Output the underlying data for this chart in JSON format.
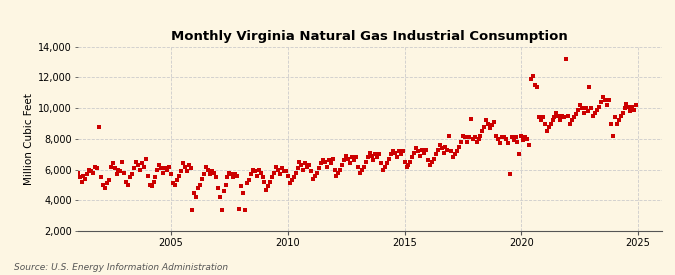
{
  "title": "Monthly Virginia Natural Gas Industrial Consumption",
  "ylabel": "Million Cubic Feet",
  "source": "Source: U.S. Energy Information Administration",
  "bg_color": "#fdf6e3",
  "dot_color": "#cc0000",
  "grid_color": "#cccccc",
  "ylim": [
    2000,
    14000
  ],
  "yticks": [
    2000,
    4000,
    6000,
    8000,
    10000,
    12000,
    14000
  ],
  "xlim": [
    2001.0,
    2026.0
  ],
  "xticks": [
    2005,
    2010,
    2015,
    2020,
    2025
  ],
  "start_year": 2001,
  "start_month": 1,
  "values": [
    5800,
    5500,
    5200,
    5600,
    5400,
    5700,
    6000,
    5900,
    5800,
    6200,
    6100,
    8800,
    5500,
    5000,
    4800,
    5100,
    5300,
    6200,
    6400,
    6100,
    5700,
    6000,
    5900,
    6500,
    5800,
    5200,
    5000,
    5500,
    5700,
    6100,
    6500,
    6300,
    6000,
    6400,
    6200,
    6700,
    5600,
    5000,
    4900,
    5200,
    5500,
    6000,
    6300,
    6100,
    5800,
    6100,
    6000,
    6200,
    5700,
    5100,
    5000,
    5300,
    5600,
    5900,
    6400,
    6200,
    5900,
    6300,
    6100,
    3400,
    4500,
    4200,
    4800,
    5000,
    5400,
    5700,
    6200,
    6000,
    5700,
    5900,
    5800,
    5500,
    4800,
    4200,
    3350,
    4600,
    5000,
    5500,
    5800,
    5700,
    5500,
    5700,
    5600,
    3450,
    4900,
    4500,
    3400,
    5100,
    5300,
    5700,
    6000,
    5900,
    5600,
    6000,
    5800,
    5500,
    5200,
    4700,
    4900,
    5200,
    5500,
    5800,
    6200,
    6000,
    5700,
    6100,
    5900,
    5900,
    5600,
    5100,
    5300,
    5500,
    5800,
    6100,
    6500,
    6300,
    6000,
    6400,
    6200,
    6300,
    5900,
    5400,
    5600,
    5800,
    6100,
    6400,
    6600,
    6500,
    6200,
    6600,
    6400,
    6700,
    6000,
    5600,
    5800,
    6000,
    6300,
    6600,
    6900,
    6700,
    6400,
    6800,
    6600,
    6800,
    6200,
    5800,
    6000,
    6200,
    6500,
    6800,
    7100,
    6900,
    6600,
    7000,
    6800,
    7000,
    6400,
    6000,
    6200,
    6400,
    6700,
    7000,
    7200,
    7100,
    6800,
    7200,
    7000,
    7200,
    6500,
    6200,
    6300,
    6500,
    6800,
    7100,
    7400,
    7200,
    6900,
    7300,
    7100,
    7300,
    6600,
    6300,
    6500,
    6700,
    7000,
    7300,
    7600,
    7400,
    7100,
    7500,
    7300,
    8200,
    7200,
    6800,
    7000,
    7200,
    7500,
    7800,
    8200,
    8100,
    7800,
    8100,
    9300,
    8000,
    8100,
    7800,
    8000,
    8200,
    8500,
    8800,
    9200,
    9000,
    8700,
    8900,
    9100,
    8200,
    8000,
    7700,
    8100,
    8100,
    8000,
    7700,
    5700,
    8100,
    7900,
    8100,
    7800,
    7000,
    8200,
    7900,
    8100,
    8000,
    7600,
    11900,
    12100,
    11500,
    11400,
    9400,
    9200,
    9400,
    9000,
    8500,
    8800,
    9000,
    9200,
    9400,
    9700,
    9500,
    9200,
    9500,
    9400,
    13200,
    9500,
    9000,
    9200,
    9400,
    9600,
    9900,
    10200,
    10000,
    9700,
    10000,
    9800,
    11400,
    10000,
    9500,
    9700,
    9900,
    10100,
    10400,
    10700,
    10500,
    10200,
    10500,
    9000,
    8200,
    9400,
    9000,
    9200,
    9500,
    9700,
    10000,
    10300,
    10100,
    9800,
    10100,
    9900,
    10200
  ]
}
